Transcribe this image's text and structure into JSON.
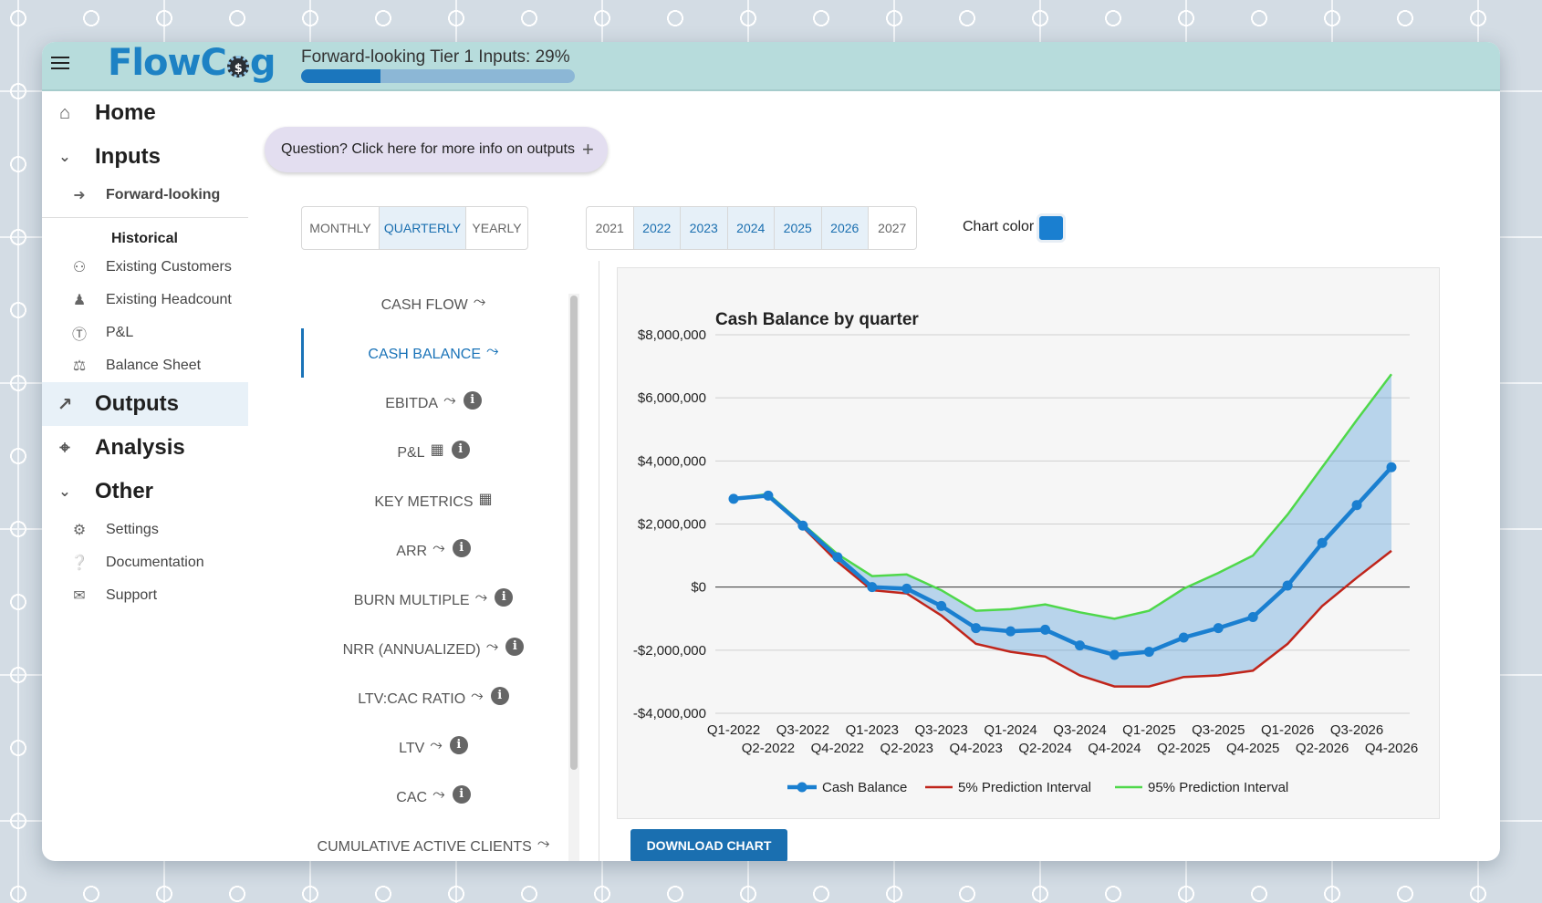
{
  "header": {
    "logo_pre": "FlowC",
    "logo_cog": "$",
    "logo_post": "g",
    "progress_label": "Forward-looking Tier 1 Inputs: 29%",
    "progress_percent": 29
  },
  "sidebar": {
    "home": "Home",
    "inputs": "Inputs",
    "forward_looking": "Forward-looking",
    "historical_heading": "Historical",
    "existing_customers": "Existing Customers",
    "existing_headcount": "Existing Headcount",
    "pl": "P&L",
    "balance_sheet": "Balance Sheet",
    "outputs": "Outputs",
    "analysis": "Analysis",
    "other": "Other",
    "settings": "Settings",
    "documentation": "Documentation",
    "support": "Support"
  },
  "question_button": "Question? Click here for more info on outputs",
  "period_options": [
    "MONTHLY",
    "QUARTERLY",
    "YEARLY"
  ],
  "period_selected": "QUARTERLY",
  "year_options": [
    "2021",
    "2022",
    "2023",
    "2024",
    "2025",
    "2026",
    "2027"
  ],
  "years_selected": [
    "2022",
    "2023",
    "2024",
    "2025",
    "2026"
  ],
  "chart_color": {
    "label": "Chart color",
    "value": "#1a7fd0"
  },
  "output_menu": [
    {
      "label": "CASH FLOW",
      "icon": "trend",
      "info": false,
      "active": false
    },
    {
      "label": "CASH BALANCE",
      "icon": "trend",
      "info": false,
      "active": true
    },
    {
      "label": "EBITDA",
      "icon": "trend",
      "info": true,
      "active": false
    },
    {
      "label": "P&L",
      "icon": "table",
      "info": true,
      "active": false
    },
    {
      "label": "KEY METRICS",
      "icon": "table",
      "info": false,
      "active": false
    },
    {
      "label": "ARR",
      "icon": "trend",
      "info": true,
      "active": false
    },
    {
      "label": "BURN MULTIPLE",
      "icon": "trend",
      "info": true,
      "active": false
    },
    {
      "label": "NRR (ANNUALIZED)",
      "icon": "trend",
      "info": true,
      "active": false
    },
    {
      "label": "LTV:CAC RATIO",
      "icon": "trend",
      "info": true,
      "active": false
    },
    {
      "label": "LTV",
      "icon": "trend",
      "info": true,
      "active": false
    },
    {
      "label": "CAC",
      "icon": "trend",
      "info": true,
      "active": false
    },
    {
      "label": "CUMULATIVE ACTIVE CLIENTS",
      "icon": "trend",
      "info": false,
      "active": false
    }
  ],
  "download_button": "DOWNLOAD CHART",
  "chart_data": {
    "type": "line",
    "title": "Cash Balance by quarter",
    "xlabel": "",
    "ylabel": "",
    "ylim": [
      -4000000,
      8000000
    ],
    "yticks": [
      8000000,
      6000000,
      4000000,
      2000000,
      0,
      -2000000,
      -4000000
    ],
    "ytick_labels": [
      "$8,000,000",
      "$6,000,000",
      "$4,000,000",
      "$2,000,000",
      "$0",
      "-$2,000,000",
      "-$4,000,000"
    ],
    "categories": [
      "Q1-2022",
      "Q2-2022",
      "Q3-2022",
      "Q4-2022",
      "Q1-2023",
      "Q2-2023",
      "Q3-2023",
      "Q4-2023",
      "Q1-2024",
      "Q2-2024",
      "Q3-2024",
      "Q4-2024",
      "Q1-2025",
      "Q2-2025",
      "Q3-2025",
      "Q4-2025",
      "Q1-2026",
      "Q2-2026",
      "Q3-2026",
      "Q4-2026"
    ],
    "series": [
      {
        "name": "Cash Balance",
        "color": "#1a7fd0",
        "values": [
          2800000,
          2900000,
          1950000,
          950000,
          0,
          -50000,
          -600000,
          -1300000,
          -1400000,
          -1350000,
          -1850000,
          -2150000,
          -2050000,
          -1600000,
          -1300000,
          -950000,
          50000,
          1400000,
          2600000,
          3800000
        ]
      },
      {
        "name": "5% Prediction Interval",
        "color": "#c0251b",
        "values": [
          2800000,
          2900000,
          1900000,
          800000,
          -100000,
          -200000,
          -900000,
          -1800000,
          -2050000,
          -2200000,
          -2800000,
          -3150000,
          -3150000,
          -2850000,
          -2800000,
          -2650000,
          -1800000,
          -600000,
          300000,
          1150000
        ]
      },
      {
        "name": "95% Prediction Interval",
        "color": "#4fd84a",
        "values": [
          2800000,
          2950000,
          2000000,
          1050000,
          350000,
          400000,
          -100000,
          -750000,
          -700000,
          -550000,
          -800000,
          -1000000,
          -750000,
          -50000,
          450000,
          1000000,
          2300000,
          3800000,
          5300000,
          6750000
        ]
      }
    ],
    "legend_position": "bottom",
    "grid": true
  }
}
